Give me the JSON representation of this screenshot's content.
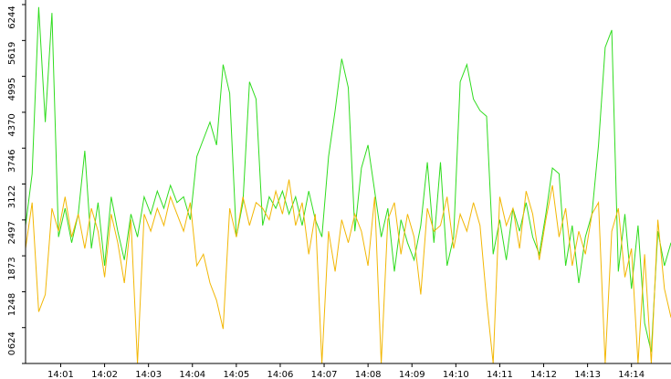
{
  "chart_data": {
    "type": "line",
    "x": [
      0.2,
      0.35,
      0.5,
      0.65,
      0.8,
      0.95,
      1.1,
      1.25,
      1.4,
      1.55,
      1.7,
      1.85,
      2,
      2.15,
      2.3,
      2.45,
      2.6,
      2.75,
      2.9,
      3.05,
      3.2,
      3.35,
      3.5,
      3.65,
      3.8,
      3.95,
      4.1,
      4.25,
      4.4,
      4.55,
      4.7,
      4.85,
      5,
      5.15,
      5.3,
      5.45,
      5.6,
      5.75,
      5.9,
      6.05,
      6.2,
      6.35,
      6.5,
      6.65,
      6.8,
      6.95,
      7.1,
      7.25,
      7.4,
      7.55,
      7.7,
      7.85,
      8,
      8.15,
      8.3,
      8.45,
      8.6,
      8.75,
      8.9,
      9.05,
      9.2,
      9.35,
      9.5,
      9.65,
      9.8,
      9.95,
      10.1,
      10.25,
      10.4,
      10.55,
      10.7,
      10.85,
      11,
      11.15,
      11.3,
      11.45,
      11.6,
      11.75,
      11.9,
      12.05,
      12.2,
      12.35,
      12.5,
      12.65,
      12.8,
      12.95,
      13.1,
      13.25,
      13.4,
      13.55,
      13.7,
      13.85,
      14,
      14.15,
      14.3,
      14.45,
      14.6,
      14.75,
      14.9
    ],
    "series": [
      {
        "color": "#2fdc1e",
        "values": [
          2400,
          3300,
          6200,
          4200,
          6100,
          2200,
          2700,
          2100,
          2600,
          3700,
          2000,
          2800,
          1700,
          2900,
          2300,
          1800,
          2600,
          2200,
          2900,
          2600,
          3000,
          2700,
          3100,
          2800,
          2900,
          2500,
          3600,
          3900,
          4200,
          3800,
          5200,
          4700,
          2200,
          2800,
          4900,
          4600,
          2400,
          2900,
          2700,
          3000,
          2600,
          2900,
          2400,
          3000,
          2500,
          2200,
          3600,
          4400,
          5300,
          4800,
          2300,
          3400,
          3800,
          3000,
          2200,
          2700,
          1600,
          2500,
          2100,
          1800,
          2400,
          3500,
          2100,
          3500,
          1700,
          2200,
          4900,
          5200,
          4600,
          4400,
          4300,
          1900,
          2500,
          1800,
          2700,
          2300,
          2800,
          2200,
          1900,
          2600,
          3400,
          3300,
          1700,
          2400,
          1400,
          2200,
          2600,
          3800,
          5500,
          5800,
          1600,
          2600,
          1300,
          2400,
          700,
          200,
          2300,
          1700,
          2100
        ]
      },
      {
        "color": "#f2b705",
        "values": [
          2000,
          2800,
          900,
          1200,
          2700,
          2300,
          2900,
          2200,
          2600,
          2000,
          2700,
          2300,
          1500,
          2600,
          2100,
          1400,
          2500,
          0,
          2600,
          2300,
          2700,
          2400,
          2900,
          2600,
          2300,
          2800,
          1700,
          1900,
          1400,
          1100,
          600,
          2700,
          2200,
          2900,
          2400,
          2800,
          2700,
          2500,
          3000,
          2600,
          3200,
          2400,
          2800,
          1900,
          2600,
          0,
          2300,
          1600,
          2500,
          2100,
          2600,
          2300,
          1700,
          2900,
          0,
          2500,
          2800,
          1900,
          2600,
          2200,
          1200,
          2700,
          2300,
          2400,
          2900,
          2000,
          2600,
          2300,
          2800,
          2400,
          1100,
          0,
          2900,
          2400,
          2700,
          2000,
          3000,
          2600,
          1800,
          2500,
          3100,
          2200,
          2700,
          1700,
          2300,
          1900,
          2600,
          2800,
          0,
          2300,
          2700,
          1500,
          2000,
          0,
          1900,
          0,
          2500,
          1300,
          800
        ]
      }
    ],
    "xlim": [
      0.2,
      14.9
    ],
    "xticks": [
      {
        "value": 1,
        "label": "14:01"
      },
      {
        "value": 2,
        "label": "14:02"
      },
      {
        "value": 3,
        "label": "14:03"
      },
      {
        "value": 4,
        "label": "14:04"
      },
      {
        "value": 5,
        "label": "14:05"
      },
      {
        "value": 6,
        "label": "14:06"
      },
      {
        "value": 7,
        "label": "14:07"
      },
      {
        "value": 8,
        "label": "14:08"
      },
      {
        "value": 9,
        "label": "14:09"
      },
      {
        "value": 10,
        "label": "14:10"
      },
      {
        "value": 11,
        "label": "14:11"
      },
      {
        "value": 12,
        "label": "14:12"
      },
      {
        "value": 13,
        "label": "14:13"
      },
      {
        "value": 14,
        "label": "14:14"
      }
    ],
    "ylim": [
      0,
      6244
    ],
    "yticks": [
      0,
      624,
      1248,
      1873,
      2497,
      3122,
      3746,
      4370,
      4995,
      5619,
      6244
    ]
  }
}
